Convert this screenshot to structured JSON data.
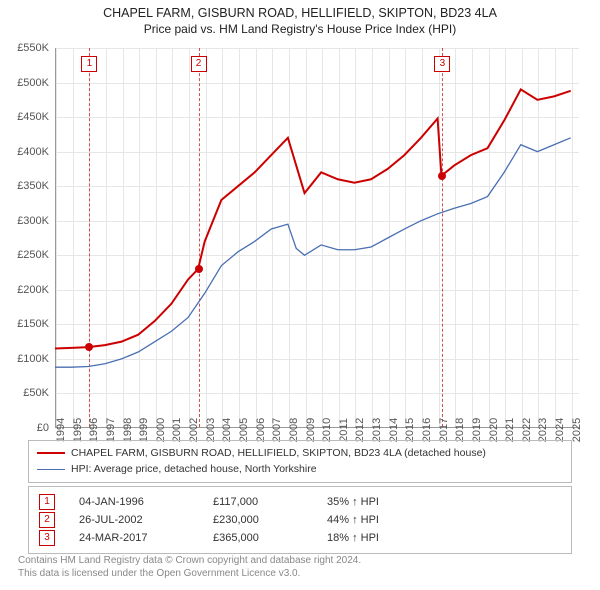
{
  "title": {
    "line1": "CHAPEL FARM, GISBURN ROAD, HELLIFIELD, SKIPTON, BD23 4LA",
    "line2": "Price paid vs. HM Land Registry's House Price Index (HPI)"
  },
  "chart": {
    "type": "line",
    "background_color": "#ffffff",
    "grid_color": "#e6e6e6",
    "axis_color": "#999999",
    "x_years": [
      1994,
      1995,
      1996,
      1997,
      1998,
      1999,
      2000,
      2001,
      2002,
      2003,
      2004,
      2005,
      2006,
      2007,
      2008,
      2009,
      2010,
      2011,
      2012,
      2013,
      2014,
      2015,
      2016,
      2017,
      2018,
      2019,
      2020,
      2021,
      2022,
      2023,
      2024,
      2025
    ],
    "xlim": [
      1994,
      2025.5
    ],
    "ylim": [
      0,
      550000
    ],
    "y_ticks": [
      0,
      50000,
      100000,
      150000,
      200000,
      250000,
      300000,
      350000,
      400000,
      450000,
      500000,
      550000
    ],
    "y_tick_labels": [
      "£0",
      "£50K",
      "£100K",
      "£150K",
      "£200K",
      "£250K",
      "£300K",
      "£350K",
      "£400K",
      "£450K",
      "£500K",
      "£550K"
    ],
    "series_red": {
      "color": "#cc0000",
      "width": 2,
      "label": "CHAPEL FARM, GISBURN ROAD, HELLIFIELD, SKIPTON, BD23 4LA (detached house)",
      "points": [
        [
          1994,
          115000
        ],
        [
          1995,
          116000
        ],
        [
          1996,
          117000
        ],
        [
          1997,
          120000
        ],
        [
          1998,
          125000
        ],
        [
          1999,
          135000
        ],
        [
          2000,
          155000
        ],
        [
          2001,
          180000
        ],
        [
          2002,
          215000
        ],
        [
          2002.6,
          230000
        ],
        [
          2003,
          270000
        ],
        [
          2004,
          330000
        ],
        [
          2005,
          350000
        ],
        [
          2006,
          370000
        ],
        [
          2007,
          395000
        ],
        [
          2008,
          420000
        ],
        [
          2008.5,
          380000
        ],
        [
          2009,
          340000
        ],
        [
          2010,
          370000
        ],
        [
          2011,
          360000
        ],
        [
          2012,
          355000
        ],
        [
          2013,
          360000
        ],
        [
          2014,
          375000
        ],
        [
          2015,
          395000
        ],
        [
          2016,
          420000
        ],
        [
          2017,
          448000
        ],
        [
          2017.23,
          365000
        ],
        [
          2018,
          380000
        ],
        [
          2019,
          395000
        ],
        [
          2020,
          405000
        ],
        [
          2021,
          445000
        ],
        [
          2022,
          490000
        ],
        [
          2023,
          475000
        ],
        [
          2024,
          480000
        ],
        [
          2025,
          488000
        ]
      ]
    },
    "series_blue": {
      "color": "#4a6fb3",
      "width": 1.3,
      "label": "HPI: Average price, detached house, North Yorkshire",
      "points": [
        [
          1994,
          88000
        ],
        [
          1995,
          88000
        ],
        [
          1996,
          89000
        ],
        [
          1997,
          93000
        ],
        [
          1998,
          100000
        ],
        [
          1999,
          110000
        ],
        [
          2000,
          125000
        ],
        [
          2001,
          140000
        ],
        [
          2002,
          160000
        ],
        [
          2003,
          195000
        ],
        [
          2004,
          235000
        ],
        [
          2005,
          255000
        ],
        [
          2006,
          270000
        ],
        [
          2007,
          288000
        ],
        [
          2008,
          295000
        ],
        [
          2008.5,
          260000
        ],
        [
          2009,
          250000
        ],
        [
          2010,
          265000
        ],
        [
          2011,
          258000
        ],
        [
          2012,
          258000
        ],
        [
          2013,
          262000
        ],
        [
          2014,
          275000
        ],
        [
          2015,
          288000
        ],
        [
          2016,
          300000
        ],
        [
          2017,
          310000
        ],
        [
          2018,
          318000
        ],
        [
          2019,
          325000
        ],
        [
          2020,
          335000
        ],
        [
          2021,
          370000
        ],
        [
          2022,
          410000
        ],
        [
          2023,
          400000
        ],
        [
          2024,
          410000
        ],
        [
          2025,
          420000
        ]
      ]
    },
    "events": [
      {
        "n": "1",
        "year": 1996.01,
        "price": 117000
      },
      {
        "n": "2",
        "year": 2002.57,
        "price": 230000
      },
      {
        "n": "3",
        "year": 2017.23,
        "price": 365000
      }
    ]
  },
  "legend": {
    "red": "CHAPEL FARM, GISBURN ROAD, HELLIFIELD, SKIPTON, BD23 4LA (detached house)",
    "blue": "HPI: Average price, detached house, North Yorkshire"
  },
  "events_table": [
    {
      "n": "1",
      "date": "04-JAN-1996",
      "price": "£117,000",
      "pct": "35% ↑ HPI"
    },
    {
      "n": "2",
      "date": "26-JUL-2002",
      "price": "£230,000",
      "pct": "44% ↑ HPI"
    },
    {
      "n": "3",
      "date": "24-MAR-2017",
      "price": "£365,000",
      "pct": "18% ↑ HPI"
    }
  ],
  "footer": {
    "line1": "Contains HM Land Registry data © Crown copyright and database right 2024.",
    "line2": "This data is licensed under the Open Government Licence v3.0."
  }
}
